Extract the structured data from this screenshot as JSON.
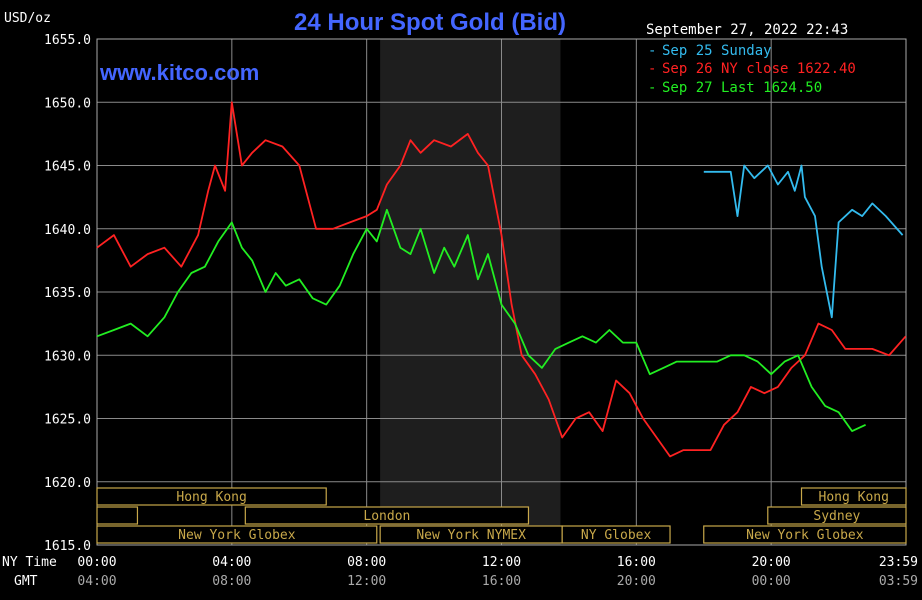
{
  "chart_data": {
    "type": "line",
    "title": "24 Hour Spot Gold (Bid)",
    "watermark": "www.kitco.com",
    "unit": "USD/oz",
    "timestamp": "September 27, 2022 22:43",
    "ylim": [
      1615.0,
      1655.0
    ],
    "yticks": [
      "1655.0",
      "1650.0",
      "1645.0",
      "1640.0",
      "1635.0",
      "1630.0",
      "1625.0",
      "1620.0",
      "1615.0"
    ],
    "xlim": [
      0,
      24
    ],
    "x_axis_label_ny": "NY Time",
    "x_axis_label_gmt": "GMT",
    "xticks_ny": [
      "00:00",
      "04:00",
      "08:00",
      "12:00",
      "16:00",
      "20:00",
      "23:59"
    ],
    "xticks_gmt": [
      "04:00",
      "08:00",
      "12:00",
      "16:00",
      "20:00",
      "00:00",
      "03:59"
    ],
    "colors": {
      "sep25": "#33bbee",
      "sep26": "#ff2222",
      "sep27": "#22ee22",
      "title": "#4466ff"
    },
    "series": [
      {
        "name": "Sep 25 Sunday",
        "color": "#33bbee",
        "x": [
          18.0,
          18.8,
          19.0,
          19.2,
          19.5,
          19.9,
          20.2,
          20.5,
          20.7,
          20.9,
          21.0,
          21.3,
          21.5,
          21.8,
          22.0,
          22.4,
          22.7,
          23.0,
          23.4,
          23.9
        ],
        "y": [
          1644.5,
          1644.5,
          1641.0,
          1645.0,
          1644.0,
          1645.0,
          1643.5,
          1644.5,
          1643.0,
          1645.0,
          1642.5,
          1641.0,
          1637.0,
          1633.0,
          1640.5,
          1641.5,
          1641.0,
          1642.0,
          1641.0,
          1639.5
        ]
      },
      {
        "name": "Sep 26 NY close 1622.40",
        "color": "#ff2222",
        "x": [
          0.0,
          0.5,
          1.0,
          1.5,
          2.0,
          2.5,
          3.0,
          3.3,
          3.5,
          3.8,
          4.0,
          4.3,
          4.6,
          5.0,
          5.5,
          6.0,
          6.5,
          7.0,
          7.5,
          8.0,
          8.3,
          8.6,
          9.0,
          9.3,
          9.6,
          10.0,
          10.5,
          11.0,
          11.3,
          11.6,
          12.0,
          12.3,
          12.6,
          13.0,
          13.4,
          13.8,
          14.2,
          14.6,
          15.0,
          15.4,
          15.8,
          16.2,
          16.6,
          17.0,
          17.4,
          17.8,
          18.2,
          18.6,
          19.0,
          19.4,
          19.8,
          20.2,
          20.6,
          21.0,
          21.4,
          21.8,
          22.2,
          22.6,
          23.0,
          23.5,
          23.99
        ],
        "y": [
          1638.5,
          1639.5,
          1637.0,
          1638.0,
          1638.5,
          1637.0,
          1639.5,
          1643.0,
          1645.0,
          1643.0,
          1650.0,
          1645.0,
          1646.0,
          1647.0,
          1646.5,
          1645.0,
          1640.0,
          1640.0,
          1640.5,
          1641.0,
          1641.5,
          1643.5,
          1645.0,
          1647.0,
          1646.0,
          1647.0,
          1646.5,
          1647.5,
          1646.0,
          1645.0,
          1639.5,
          1634.0,
          1630.0,
          1628.5,
          1626.5,
          1623.5,
          1625.0,
          1625.5,
          1624.0,
          1628.0,
          1627.0,
          1625.0,
          1623.5,
          1622.0,
          1622.5,
          1622.5,
          1622.5,
          1624.5,
          1625.5,
          1627.5,
          1627.0,
          1627.5,
          1629.0,
          1630.0,
          1632.5,
          1632.0,
          1630.5,
          1630.5,
          1630.5,
          1630.0,
          1631.5
        ]
      },
      {
        "name": "Sep 27 Last 1624.50",
        "color": "#22ee22",
        "x": [
          0.0,
          0.5,
          1.0,
          1.5,
          2.0,
          2.4,
          2.8,
          3.2,
          3.6,
          4.0,
          4.3,
          4.6,
          5.0,
          5.3,
          5.6,
          6.0,
          6.4,
          6.8,
          7.2,
          7.6,
          8.0,
          8.3,
          8.6,
          9.0,
          9.3,
          9.6,
          10.0,
          10.3,
          10.6,
          11.0,
          11.3,
          11.6,
          12.0,
          12.4,
          12.8,
          13.2,
          13.6,
          14.0,
          14.4,
          14.8,
          15.2,
          15.6,
          16.0,
          16.4,
          16.8,
          17.2,
          17.6,
          18.0,
          18.4,
          18.8,
          19.2,
          19.6,
          20.0,
          20.4,
          20.8,
          21.2,
          21.6,
          22.0,
          22.4,
          22.8
        ],
        "y": [
          1631.5,
          1632.0,
          1632.5,
          1631.5,
          1633.0,
          1635.0,
          1636.5,
          1637.0,
          1639.0,
          1640.5,
          1638.5,
          1637.5,
          1635.0,
          1636.5,
          1635.5,
          1636.0,
          1634.5,
          1634.0,
          1635.5,
          1638.0,
          1640.0,
          1639.0,
          1641.5,
          1638.5,
          1638.0,
          1640.0,
          1636.5,
          1638.5,
          1637.0,
          1639.5,
          1636.0,
          1638.0,
          1634.0,
          1632.5,
          1630.0,
          1629.0,
          1630.5,
          1631.0,
          1631.5,
          1631.0,
          1632.0,
          1631.0,
          1631.0,
          1628.5,
          1629.0,
          1629.5,
          1629.5,
          1629.5,
          1629.5,
          1630.0,
          1630.0,
          1629.5,
          1628.5,
          1629.5,
          1630.0,
          1627.5,
          1626.0,
          1625.5,
          1624.0,
          1624.5
        ]
      }
    ],
    "shaded_band": {
      "from": 8.4,
      "to": 13.75,
      "color": "#1e1e1e"
    },
    "session_rows": [
      [
        {
          "label": "Hong Kong",
          "from": 0.0,
          "to": 6.8
        },
        {
          "label": "Hong Kong",
          "from": 20.9,
          "to": 24.0
        }
      ],
      [
        {
          "label": "",
          "from": 0.0,
          "to": 1.2
        },
        {
          "label": "London",
          "from": 4.4,
          "to": 12.8
        },
        {
          "label": "Sydney",
          "from": 19.9,
          "to": 24.0
        }
      ],
      [
        {
          "label": "New York Globex",
          "from": 0.0,
          "to": 8.3
        },
        {
          "label": "New York NYMEX",
          "from": 8.4,
          "to": 13.8
        },
        {
          "label": "NY Globex",
          "from": 13.8,
          "to": 17.0
        },
        {
          "label": "New York Globex",
          "from": 18.0,
          "to": 24.0
        }
      ]
    ]
  }
}
